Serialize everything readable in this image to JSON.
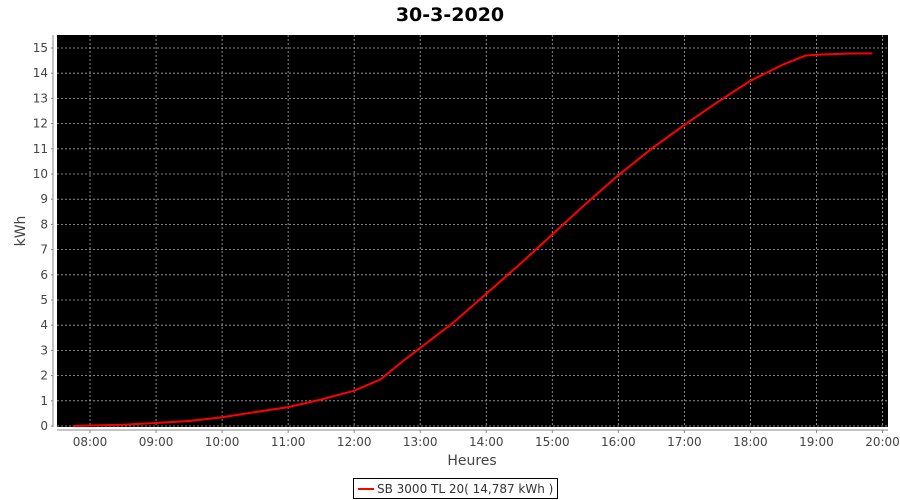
{
  "chart_data": {
    "type": "line",
    "title": "30-3-2020",
    "xlabel": "Heures",
    "ylabel": "kWh",
    "xlim": [
      "07:30",
      "20:05"
    ],
    "ylim": [
      0,
      15.5
    ],
    "x_ticks": [
      "08:00",
      "09:00",
      "10:00",
      "11:00",
      "12:00",
      "13:00",
      "14:00",
      "15:00",
      "16:00",
      "17:00",
      "18:00",
      "19:00",
      "20:00"
    ],
    "y_ticks": [
      0,
      1,
      2,
      3,
      4,
      5,
      6,
      7,
      8,
      9,
      10,
      11,
      12,
      13,
      14,
      15
    ],
    "grid": true,
    "background": "#000000",
    "legend_position": "bottom",
    "series": [
      {
        "name": "SB 3000 TL 20( 14,787 kWh )",
        "color": "#ff0000",
        "x": [
          "07:45",
          "08:00",
          "08:30",
          "09:00",
          "09:30",
          "10:00",
          "10:30",
          "11:00",
          "11:30",
          "12:00",
          "12:24",
          "12:45",
          "13:00",
          "13:30",
          "14:00",
          "14:30",
          "15:00",
          "15:30",
          "16:00",
          "16:30",
          "17:00",
          "17:30",
          "18:00",
          "18:30",
          "18:50",
          "19:00",
          "19:30",
          "19:50"
        ],
        "y": [
          0,
          0.02,
          0.05,
          0.12,
          0.2,
          0.35,
          0.55,
          0.75,
          1.05,
          1.4,
          1.85,
          2.6,
          3.1,
          4.1,
          5.25,
          6.4,
          7.6,
          8.8,
          9.95,
          11.0,
          11.95,
          12.85,
          13.7,
          14.35,
          14.7,
          14.73,
          14.78,
          14.787
        ]
      }
    ]
  }
}
